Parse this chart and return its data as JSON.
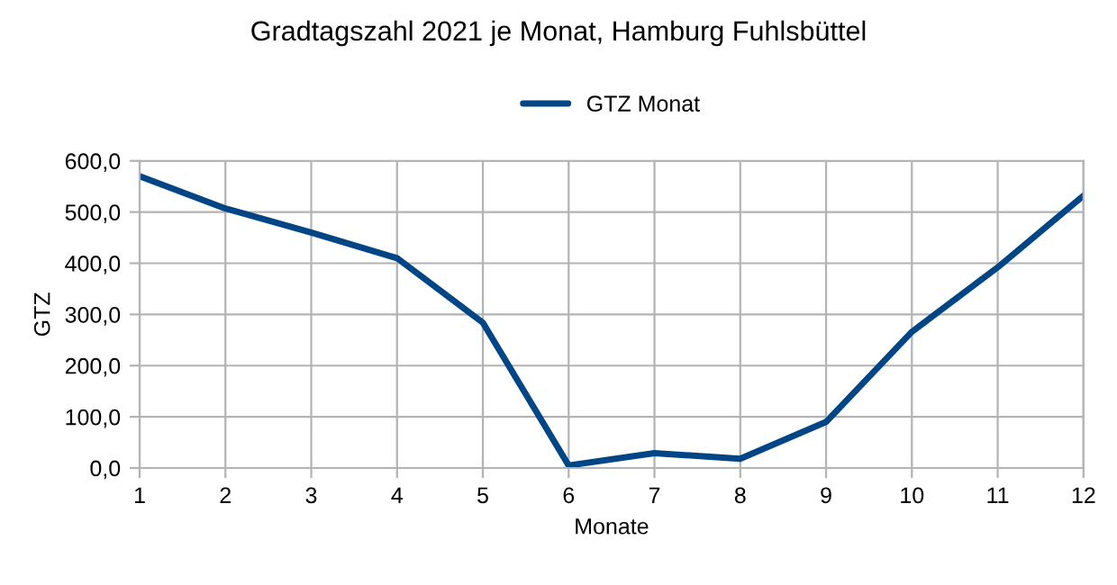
{
  "chart_data": {
    "type": "line",
    "title": "Gradtagszahl 2021 je Monat, Hamburg Fuhlsbüttel",
    "xlabel": "Monate",
    "ylabel": "GTZ",
    "x": [
      1,
      2,
      3,
      4,
      5,
      6,
      7,
      8,
      9,
      10,
      11,
      12
    ],
    "series": [
      {
        "name": "GTZ Monat",
        "color": "#004586",
        "values": [
          570,
          507,
          460,
          410,
          284,
          5,
          29,
          18,
          90,
          266,
          392,
          532
        ]
      }
    ],
    "xlim": [
      1,
      12
    ],
    "xticks": [
      1,
      2,
      3,
      4,
      5,
      6,
      7,
      8,
      9,
      10,
      11,
      12
    ],
    "ylim": [
      0,
      600
    ],
    "yticks": [
      {
        "value": 0,
        "label": "0,0"
      },
      {
        "value": 100,
        "label": "100,0"
      },
      {
        "value": 200,
        "label": "200,0"
      },
      {
        "value": 300,
        "label": "300,0"
      },
      {
        "value": 400,
        "label": "400,0"
      },
      {
        "value": 500,
        "label": "500,0"
      },
      {
        "value": 600,
        "label": "600,0"
      }
    ],
    "grid": true,
    "legend": "top",
    "marker": "none",
    "line_style": "solid"
  }
}
